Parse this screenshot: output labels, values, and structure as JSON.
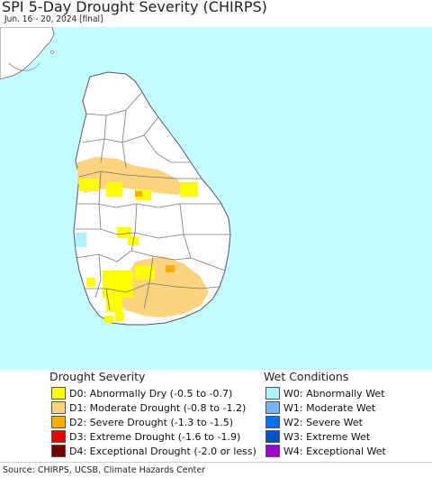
{
  "header": {
    "title": "SPI 5-Day Drought Severity (CHIRPS)",
    "subtitle": "Jun. 16 - 20, 2024 [final]"
  },
  "map": {
    "colors": {
      "ocean": "#c3fdff",
      "land": "#ffffff",
      "boundary": "#666666"
    }
  },
  "legend": {
    "drought": {
      "heading": "Drought Severity",
      "items": [
        {
          "label": "D0: Abnormally Dry (-0.5 to -0.7)",
          "color": "#ffff00"
        },
        {
          "label": "D1: Moderate Drought (-0.8 to -1.2)",
          "color": "#fcd37f"
        },
        {
          "label": "D2: Severe Drought (-1.3 to -1.5)",
          "color": "#ffaa00"
        },
        {
          "label": "D3: Extreme Drought (-1.6 to -1.9)",
          "color": "#e60000"
        },
        {
          "label": "D4: Exceptional Drought (-2.0 or less)",
          "color": "#730000"
        }
      ]
    },
    "wet": {
      "heading": "Wet Conditions",
      "items": [
        {
          "label": "W0: Abnormally Wet",
          "color": "#aff2ff"
        },
        {
          "label": "W1: Moderate Wet",
          "color": "#72b4ff"
        },
        {
          "label": "W2: Severe Wet",
          "color": "#0070ff"
        },
        {
          "label": "W3: Extreme Wet",
          "color": "#0050c8"
        },
        {
          "label": "W4: Exceptional Wet",
          "color": "#a000c8"
        }
      ]
    }
  },
  "footer": {
    "source": "Source: CHIRPS, UCSB, Climate Hazards Center"
  }
}
